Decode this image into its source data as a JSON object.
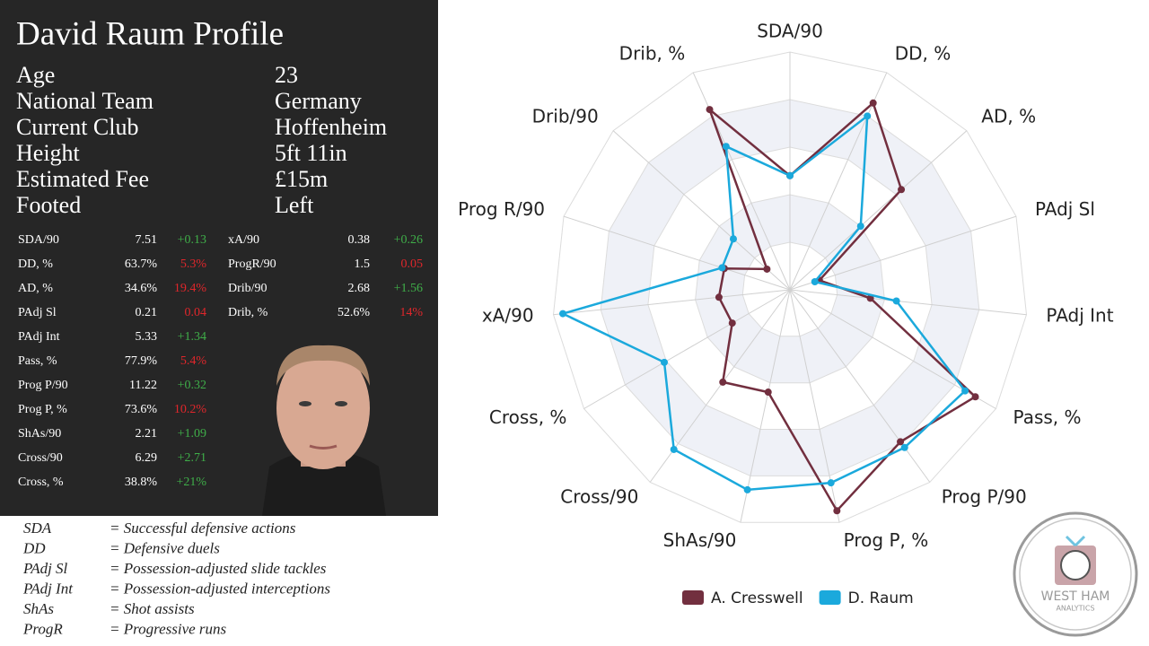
{
  "header": {
    "title": "David Raum Profile"
  },
  "profile": [
    {
      "label": "Age",
      "value": "23"
    },
    {
      "label": "National Team",
      "value": "Germany"
    },
    {
      "label": "Current Club",
      "value": "Hoffenheim"
    },
    {
      "label": "Height",
      "value": "5ft 11in"
    },
    {
      "label": "Estimated Fee",
      "value": "£15m"
    },
    {
      "label": "Footed",
      "value": "Left"
    }
  ],
  "stats": [
    [
      {
        "label": "SDA/90",
        "value": "7.51",
        "diff": "+0.13",
        "diff_color": "#3fae49"
      },
      {
        "label": "DD, %",
        "value": "63.7%",
        "diff": "5.3%",
        "diff_color": "#e0262b"
      },
      {
        "label": "AD, %",
        "value": "34.6%",
        "diff": "19.4%",
        "diff_color": "#e0262b"
      },
      {
        "label": "PAdj Sl",
        "value": "0.21",
        "diff": "0.04",
        "diff_color": "#e0262b"
      },
      {
        "label": "PAdj Int",
        "value": "5.33",
        "diff": "+1.34",
        "diff_color": "#3fae49"
      },
      {
        "label": "Pass, %",
        "value": "77.9%",
        "diff": "5.4%",
        "diff_color": "#e0262b"
      },
      {
        "label": "Prog P/90",
        "value": "11.22",
        "diff": "+0.32",
        "diff_color": "#3fae49"
      },
      {
        "label": "Prog P, %",
        "value": "73.6%",
        "diff": "10.2%",
        "diff_color": "#e0262b"
      },
      {
        "label": "ShAs/90",
        "value": "2.21",
        "diff": "+1.09",
        "diff_color": "#3fae49"
      },
      {
        "label": "Cross/90",
        "value": "6.29",
        "diff": "+2.71",
        "diff_color": "#3fae49"
      },
      {
        "label": "Cross, %",
        "value": "38.8%",
        "diff": "+21%",
        "diff_color": "#3fae49"
      }
    ],
    [
      {
        "label": "xA/90",
        "value": "0.38",
        "diff": "+0.26",
        "diff_color": "#3fae49"
      },
      {
        "label": "ProgR/90",
        "value": "1.5",
        "diff": "0.05",
        "diff_color": "#e0262b"
      },
      {
        "label": "Drib/90",
        "value": "2.68",
        "diff": "+1.56",
        "diff_color": "#3fae49"
      },
      {
        "label": "Drib, %",
        "value": "52.6%",
        "diff": "14%",
        "diff_color": "#e0262b"
      }
    ]
  ],
  "glossary": [
    {
      "abbr": "SDA",
      "definition": "= Successful defensive actions"
    },
    {
      "abbr": "DD",
      "definition": "= Defensive duels"
    },
    {
      "abbr": "PAdj Sl",
      "definition": "= Possession-adjusted slide tackles"
    },
    {
      "abbr": "PAdj Int",
      "definition": "= Possession-adjusted interceptions"
    },
    {
      "abbr": "ShAs",
      "definition": "= Shot assists"
    },
    {
      "abbr": "ProgR",
      "definition": "= Progressive runs"
    }
  ],
  "logo": {
    "name": "WEST HAM",
    "tagline": "ANALYTICS"
  },
  "chart_data": {
    "type": "radar",
    "categories": [
      "SDA/90",
      "DD, %",
      "AD, %",
      "PAdj Sl",
      "PAdj Int",
      "Pass, %",
      "Prog P/90",
      "Prog P, %",
      "ShAs/90",
      "Cross/90",
      "Cross, %",
      "xA/90",
      "Prog R/90",
      "Drib/90",
      "Drib, %"
    ],
    "series": [
      {
        "name": "A. Cresswell",
        "color": "#722f3f",
        "values": [
          48,
          86,
          63,
          13,
          34,
          90,
          79,
          95,
          44,
          48,
          28,
          30,
          29,
          13,
          83
        ]
      },
      {
        "name": "D. Raum",
        "color": "#1ba9dc",
        "values": [
          48,
          80,
          40,
          11,
          45,
          85,
          82,
          83,
          86,
          83,
          61,
          96,
          30,
          32,
          66
        ]
      }
    ],
    "rlim": [
      0,
      100
    ],
    "rticks": [
      20,
      40,
      60,
      80,
      100
    ],
    "grid": true,
    "legend": "bottom"
  }
}
